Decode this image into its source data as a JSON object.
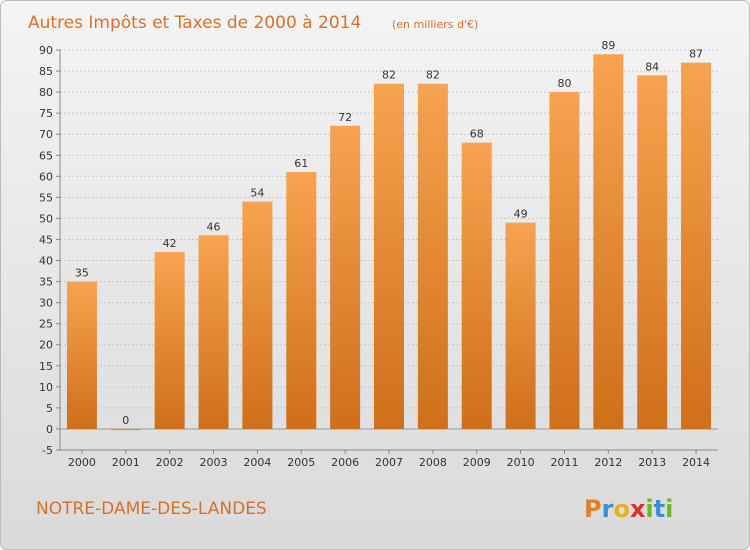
{
  "chart_data": {
    "type": "bar",
    "title": "Autres Impôts et Taxes de 2000 à 2014",
    "subtitle": "(en milliers d'€)",
    "categories": [
      "2000",
      "2001",
      "2002",
      "2003",
      "2004",
      "2005",
      "2006",
      "2007",
      "2008",
      "2009",
      "2010",
      "2011",
      "2012",
      "2013",
      "2014"
    ],
    "values": [
      35,
      0,
      42,
      46,
      54,
      61,
      72,
      82,
      82,
      68,
      49,
      80,
      89,
      84,
      87
    ],
    "ylim": [
      -5,
      90
    ],
    "yticks": [
      -5,
      0,
      5,
      10,
      15,
      20,
      25,
      30,
      35,
      40,
      45,
      50,
      55,
      60,
      65,
      70,
      75,
      80,
      85,
      90
    ],
    "grid": true,
    "bar_color": "#f59a45"
  },
  "commune": "NOTRE-DAME-DES-LANDES",
  "brand": {
    "letters": [
      "P",
      "r",
      "o",
      "x",
      "i",
      "t",
      "i"
    ],
    "colors": [
      "#e87e1e",
      "#3b8fd1",
      "#e8b01e",
      "#d8322a",
      "#6cb52d",
      "#3b8fd1",
      "#6cb52d"
    ]
  }
}
